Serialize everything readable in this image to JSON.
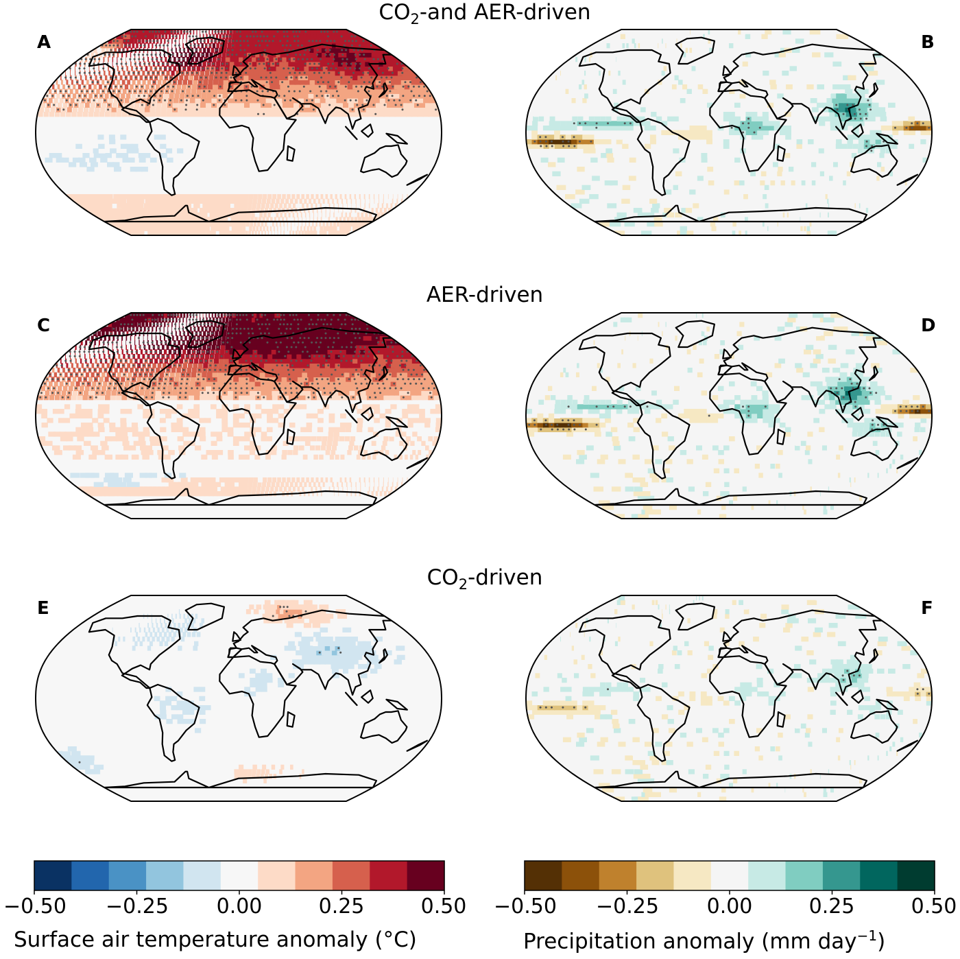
{
  "rows": [
    {
      "title_prefix": "CO",
      "title_sub": "2",
      "title_suffix": "-and AER-driven",
      "left": {
        "letter": "A",
        "variable": "temperature",
        "pattern": "co2_aer"
      },
      "right": {
        "letter": "B",
        "variable": "precipitation",
        "pattern": "co2_aer"
      }
    },
    {
      "title_prefix": "AER-driven",
      "title_sub": "",
      "title_suffix": "",
      "left": {
        "letter": "C",
        "variable": "temperature",
        "pattern": "aer"
      },
      "right": {
        "letter": "D",
        "variable": "precipitation",
        "pattern": "aer"
      }
    },
    {
      "title_prefix": "CO",
      "title_sub": "2",
      "title_suffix": "-driven",
      "left": {
        "letter": "E",
        "variable": "temperature",
        "pattern": "co2"
      },
      "right": {
        "letter": "F",
        "variable": "precipitation",
        "pattern": "co2"
      }
    }
  ],
  "colorbars": {
    "temperature": {
      "label_main": "Surface air temperature anomaly (",
      "label_unit": "°C",
      "label_end": ")",
      "ticks": [
        "−0.50",
        "−0.25",
        "0.00",
        "0.25",
        "0.50"
      ],
      "range": [
        -0.5,
        0.5
      ],
      "colors": [
        "#0a3263",
        "#2266ad",
        "#4a92c5",
        "#92c5de",
        "#d1e5f0",
        "#f7f7f7",
        "#fddbc7",
        "#f3a582",
        "#d6604d",
        "#b2182b",
        "#67001f"
      ]
    },
    "precipitation": {
      "label_main": "Precipitation anomaly (mm day",
      "label_sup": "−1",
      "label_end": ")",
      "ticks": [
        "−0.50",
        "−0.25",
        "0.00",
        "0.25",
        "0.50"
      ],
      "range": [
        -0.5,
        0.5
      ],
      "colors": [
        "#543005",
        "#8c510a",
        "#bf812d",
        "#dfc27d",
        "#f6e8c3",
        "#f5f5f5",
        "#c7eae5",
        "#80cdc1",
        "#35978f",
        "#01665e",
        "#003c30"
      ]
    }
  }
}
